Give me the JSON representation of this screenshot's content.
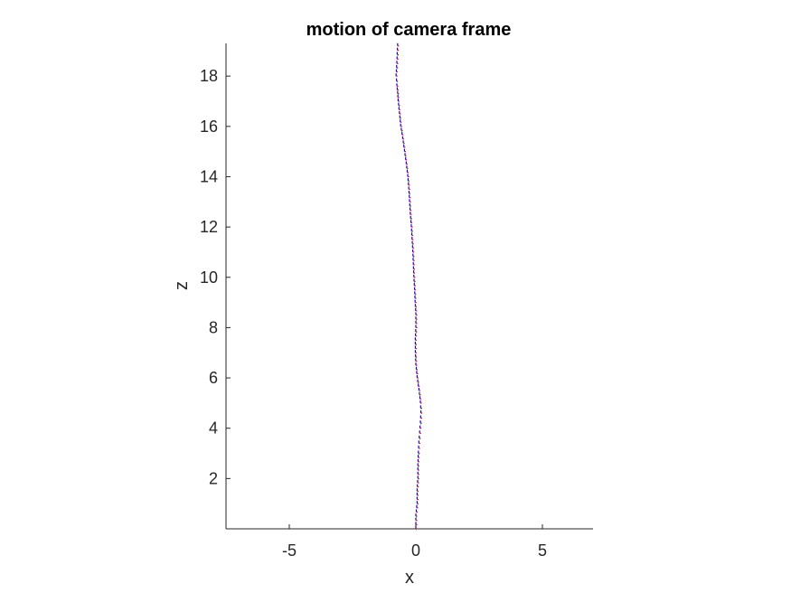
{
  "chart_data": {
    "type": "scatter",
    "title": "motion of camera frame",
    "xlabel": "x",
    "ylabel": "z",
    "xlim": [
      -7.5,
      7
    ],
    "ylim": [
      0,
      19.3
    ],
    "xticks": [
      -5,
      0,
      5
    ],
    "yticks": [
      2,
      4,
      6,
      8,
      10,
      12,
      14,
      16,
      18
    ],
    "grid": false,
    "axes_box": "left-bottom",
    "colors": {
      "x_axis_marker": "#ff0000",
      "y_axis_marker": "#00bb00",
      "z_axis_marker": "#0000ff",
      "axes": "#262626"
    },
    "series": [
      {
        "x": [
          0.0,
          0.0,
          0.05,
          0.05,
          0.08,
          0.08,
          0.1,
          0.12,
          0.15,
          0.18,
          0.2,
          0.18,
          0.12,
          0.05,
          0.0,
          -0.02,
          -0.02,
          0.0,
          0.0,
          -0.03,
          -0.05,
          -0.08,
          -0.1,
          -0.12,
          -0.15,
          -0.18,
          -0.22,
          -0.25,
          -0.28,
          -0.32,
          -0.38,
          -0.45,
          -0.52,
          -0.6,
          -0.65,
          -0.7,
          -0.72,
          -0.75,
          -0.78,
          -0.75,
          -0.72
        ],
        "y": [
          0.0,
          0.5,
          1.0,
          1.5,
          2.0,
          2.5,
          3.0,
          3.4,
          3.8,
          4.2,
          4.6,
          5.0,
          5.5,
          6.0,
          6.5,
          7.0,
          7.5,
          8.0,
          8.5,
          9.0,
          9.5,
          10.0,
          10.5,
          11.0,
          11.5,
          12.0,
          12.5,
          13.0,
          13.5,
          14.0,
          14.5,
          15.0,
          15.5,
          16.0,
          16.5,
          17.0,
          17.3,
          17.6,
          18.0,
          18.5,
          19.2
        ]
      }
    ]
  }
}
